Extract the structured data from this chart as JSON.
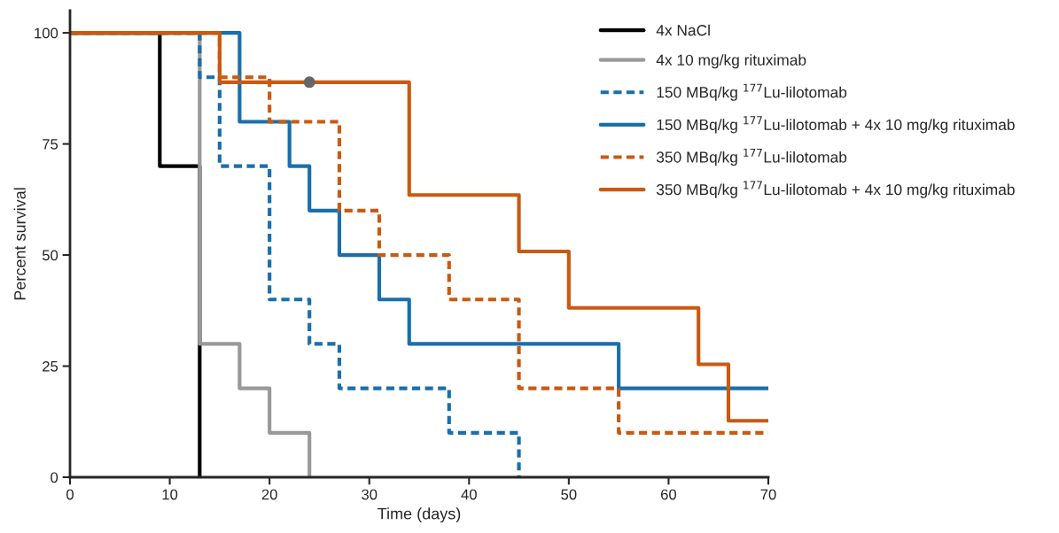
{
  "chart_data": {
    "type": "step",
    "xlabel": "Time (days)",
    "ylabel": "Percent survival",
    "xlim": [
      0,
      70
    ],
    "ylim": [
      0,
      105
    ],
    "xticks": [
      0,
      10,
      20,
      30,
      40,
      50,
      60,
      70
    ],
    "yticks": [
      0,
      25,
      50,
      75,
      100
    ],
    "grid": false,
    "legend": "right",
    "series": [
      {
        "name": "4x NaCl",
        "color": "#000000",
        "line_style": "solid",
        "x": [
          0,
          9,
          13
        ],
        "values": [
          100,
          70,
          0
        ]
      },
      {
        "name": "4x 10 mg/kg rituximab",
        "color": "#999999",
        "line_style": "solid",
        "x": [
          0,
          13,
          17,
          20,
          24
        ],
        "values": [
          100,
          30,
          20,
          10,
          0
        ]
      },
      {
        "name": "150 MBq/kg $^{177}$Lu-lilotomab",
        "color": "#1a6fab",
        "line_style": "dashed",
        "x": [
          0,
          13,
          15,
          20,
          24,
          27,
          38,
          45
        ],
        "values": [
          100,
          90,
          70,
          40,
          30,
          20,
          10,
          0
        ]
      },
      {
        "name": "150 MBq/kg $^{177}$Lu-lilotomab + 4x 10 mg/kg rituximab",
        "color": "#1a6fab",
        "line_style": "solid",
        "x": [
          0,
          17,
          22,
          24,
          27,
          31,
          34,
          55,
          70
        ],
        "values": [
          100,
          80,
          70,
          60,
          50,
          40,
          30,
          20,
          20
        ]
      },
      {
        "name": "350 MBq/kg $^{177}$Lu-lilotomab",
        "color": "#c85a12",
        "line_style": "dashed",
        "x": [
          0,
          15,
          20,
          27,
          31,
          38,
          45,
          55,
          70
        ],
        "values": [
          100,
          90,
          80,
          60,
          50,
          40,
          20,
          10,
          10
        ]
      },
      {
        "name": "350 MBq/kg $^{177}$Lu-lilotomab + 4x 10 mg/kg rituximab",
        "color": "#c85a12",
        "line_style": "solid",
        "x": [
          0,
          15,
          34,
          45,
          50,
          63,
          66,
          70
        ],
        "values": [
          100,
          88.9,
          63.5,
          50.8,
          38.1,
          25.4,
          12.7,
          12.7
        ]
      },
      {
        "type": "scatter",
        "color": "#666666",
        "marker": "circle",
        "x": [
          24
        ],
        "values": [
          88.9
        ]
      }
    ]
  }
}
